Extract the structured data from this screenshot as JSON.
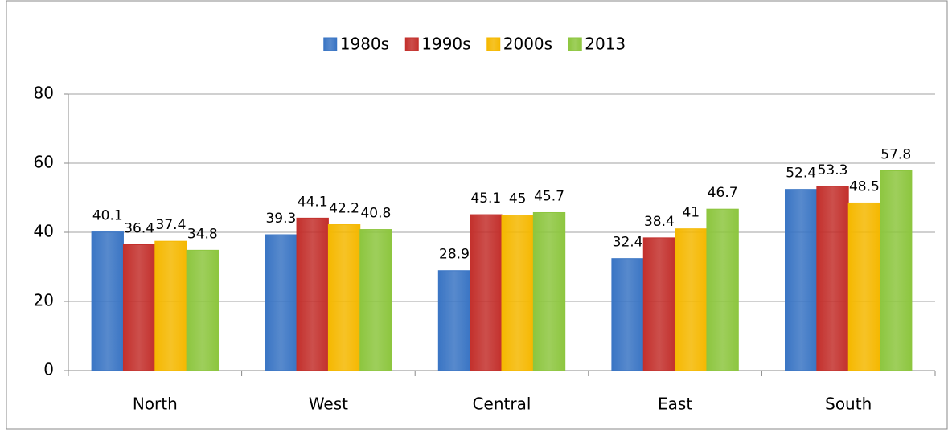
{
  "chart_data": {
    "type": "bar",
    "categories": [
      "North",
      "West",
      "Central",
      "East",
      "South"
    ],
    "series": [
      {
        "name": "1980s",
        "color": "#3a75c4",
        "values": [
          40.1,
          39.3,
          28.9,
          32.4,
          52.4
        ]
      },
      {
        "name": "1990s",
        "color": "#c3302c",
        "values": [
          36.4,
          44.1,
          45.1,
          38.4,
          53.3
        ]
      },
      {
        "name": "2000s",
        "color": "#f5b800",
        "values": [
          37.4,
          42.2,
          45,
          41,
          48.5
        ]
      },
      {
        "name": "2013",
        "color": "#8dc63f",
        "values": [
          34.8,
          40.8,
          45.7,
          46.7,
          57.8
        ]
      }
    ],
    "ylim": [
      0,
      80
    ],
    "yticks": [
      0,
      20,
      40,
      60,
      80
    ],
    "grid": true,
    "legend": "top"
  }
}
